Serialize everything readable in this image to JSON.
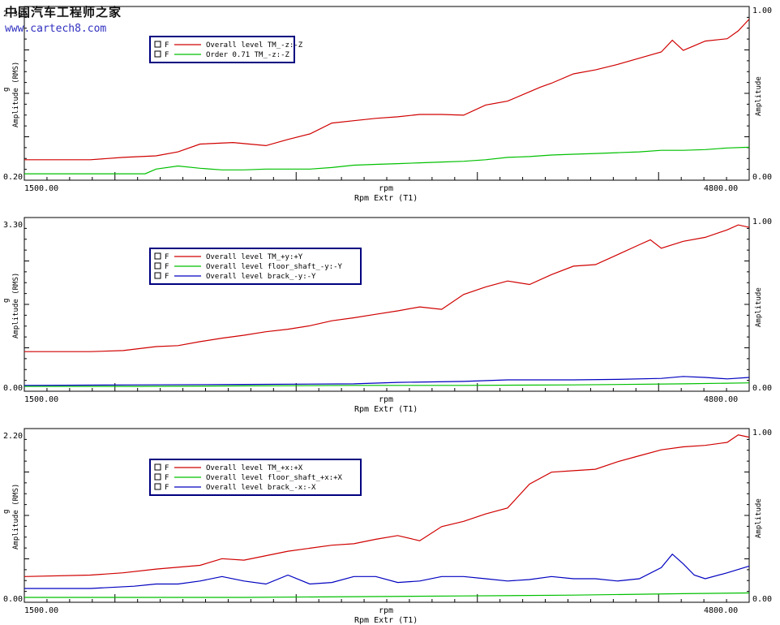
{
  "watermark": {
    "cn": "中国汽车工程师之家",
    "url": "www.cartech8.com"
  },
  "colors": {
    "red": "#d00000",
    "green": "#00c000",
    "blue": "#0000c0",
    "frame": "#000000",
    "legend_border": "#000080"
  },
  "chart_data": [
    {
      "type": "line",
      "xlabel": "rpm",
      "xsublabel": "Rpm Extr (T1)",
      "ylabel": "Amplitude (RMS)",
      "yunit": "g",
      "y2label": "Amplitude",
      "xlim": [
        1500,
        4800
      ],
      "x_ticks": [
        "1500.00",
        "4800.00"
      ],
      "y_ticks": [
        "2.30",
        "0.20"
      ],
      "y2_ticks": [
        "1.00",
        "0.00"
      ],
      "ylim": [
        0.2,
        2.3
      ],
      "legend_checkbox_label": "F",
      "series": [
        {
          "name": "Overall level TM_-z:-Z",
          "color": "red",
          "x": [
            1500,
            1800,
            1950,
            2100,
            2200,
            2300,
            2450,
            2600,
            2700,
            2800,
            2900,
            3000,
            3100,
            3200,
            3300,
            3400,
            3500,
            3600,
            3700,
            3800,
            3850,
            3900,
            4000,
            4100,
            4200,
            4300,
            4400,
            4450,
            4500,
            4550,
            4600,
            4700,
            4750,
            4800
          ],
          "y": [
            0.4,
            0.4,
            0.43,
            0.45,
            0.5,
            0.6,
            0.62,
            0.58,
            0.66,
            0.73,
            0.87,
            0.9,
            0.93,
            0.95,
            0.98,
            0.98,
            0.97,
            1.1,
            1.15,
            1.27,
            1.33,
            1.38,
            1.5,
            1.55,
            1.62,
            1.7,
            1.78,
            1.93,
            1.8,
            1.86,
            1.92,
            1.95,
            2.05,
            2.2
          ]
        },
        {
          "name": "Order 0.71 TM_-z:-Z",
          "color": "green",
          "x": [
            1500,
            1800,
            1950,
            2050,
            2100,
            2200,
            2300,
            2400,
            2500,
            2600,
            2700,
            2800,
            2900,
            3000,
            3100,
            3200,
            3300,
            3400,
            3500,
            3600,
            3700,
            3800,
            3900,
            4000,
            4100,
            4200,
            4300,
            4400,
            4500,
            4600,
            4700,
            4800
          ],
          "y": [
            0.22,
            0.22,
            0.22,
            0.22,
            0.28,
            0.32,
            0.29,
            0.27,
            0.27,
            0.28,
            0.28,
            0.28,
            0.3,
            0.33,
            0.34,
            0.35,
            0.36,
            0.37,
            0.38,
            0.4,
            0.43,
            0.44,
            0.46,
            0.47,
            0.48,
            0.49,
            0.5,
            0.52,
            0.52,
            0.53,
            0.55,
            0.56
          ]
        }
      ]
    },
    {
      "type": "line",
      "xlabel": "rpm",
      "xsublabel": "Rpm Extr (T1)",
      "ylabel": "Amplitude (RMS)",
      "yunit": "g",
      "y2label": "Amplitude",
      "xlim": [
        1500,
        4800
      ],
      "x_ticks": [
        "1500.00",
        "4800.00"
      ],
      "y_ticks": [
        "3.30",
        "0.00"
      ],
      "y2_ticks": [
        "1.00",
        "0.00"
      ],
      "ylim": [
        0,
        3.3
      ],
      "legend_checkbox_label": "F",
      "series": [
        {
          "name": "Overall level TM_+y:+Y",
          "color": "red",
          "x": [
            1500,
            1800,
            1950,
            2100,
            2200,
            2300,
            2400,
            2500,
            2600,
            2700,
            2800,
            2900,
            3000,
            3100,
            3200,
            3300,
            3400,
            3500,
            3600,
            3700,
            3800,
            3900,
            4000,
            4100,
            4200,
            4300,
            4350,
            4400,
            4500,
            4600,
            4700,
            4750,
            4800
          ],
          "y": [
            0.7,
            0.7,
            0.72,
            0.8,
            0.82,
            0.9,
            0.97,
            1.03,
            1.1,
            1.15,
            1.22,
            1.32,
            1.38,
            1.45,
            1.52,
            1.6,
            1.55,
            1.85,
            2.0,
            2.12,
            2.05,
            2.25,
            2.42,
            2.45,
            2.65,
            2.85,
            2.95,
            2.78,
            2.92,
            3.0,
            3.15,
            3.25,
            3.2
          ]
        },
        {
          "name": "Overall level floor_shaft_-y:-Y",
          "color": "green",
          "x": [
            1500,
            2000,
            2500,
            3000,
            3500,
            4000,
            4500,
            4800
          ],
          "y": [
            0.0,
            0.0,
            0.01,
            0.02,
            0.02,
            0.03,
            0.05,
            0.07
          ]
        },
        {
          "name": "Overall level brack_-y:-Y",
          "color": "blue",
          "x": [
            1500,
            2000,
            2500,
            3000,
            3200,
            3500,
            3700,
            4000,
            4200,
            4400,
            4500,
            4600,
            4700,
            4800
          ],
          "y": [
            0.02,
            0.03,
            0.04,
            0.05,
            0.08,
            0.1,
            0.13,
            0.13,
            0.14,
            0.16,
            0.2,
            0.18,
            0.15,
            0.18
          ]
        }
      ]
    },
    {
      "type": "line",
      "xlabel": "rpm",
      "xsublabel": "Rpm Extr (T1)",
      "ylabel": "Amplitude (RMS)",
      "yunit": "g",
      "y2label": "Amplitude",
      "xlim": [
        1500,
        4800
      ],
      "x_ticks": [
        "1500.00",
        "4800.00"
      ],
      "y_ticks": [
        "2.20",
        "0.00"
      ],
      "y2_ticks": [
        "1.00",
        "0.00"
      ],
      "ylim": [
        0,
        2.2
      ],
      "legend_checkbox_label": "F",
      "series": [
        {
          "name": "Overall level TM_+x:+X",
          "color": "red",
          "x": [
            1500,
            1800,
            1950,
            2100,
            2300,
            2400,
            2500,
            2600,
            2700,
            2800,
            2900,
            3000,
            3100,
            3200,
            3300,
            3400,
            3500,
            3600,
            3700,
            3800,
            3900,
            4000,
            4100,
            4200,
            4300,
            4400,
            4500,
            4600,
            4700,
            4750,
            4800
          ],
          "y": [
            0.28,
            0.3,
            0.33,
            0.38,
            0.43,
            0.52,
            0.5,
            0.56,
            0.62,
            0.66,
            0.7,
            0.72,
            0.78,
            0.83,
            0.76,
            0.95,
            1.02,
            1.12,
            1.2,
            1.52,
            1.68,
            1.7,
            1.72,
            1.82,
            1.9,
            1.98,
            2.02,
            2.04,
            2.08,
            2.18,
            2.15
          ]
        },
        {
          "name": "Overall level floor_shaft_+x:+X",
          "color": "green",
          "x": [
            1500,
            2000,
            2500,
            3000,
            3500,
            4000,
            4500,
            4800
          ],
          "y": [
            0.0,
            0.0,
            0.0,
            0.01,
            0.02,
            0.03,
            0.05,
            0.06
          ]
        },
        {
          "name": "Overall level brack_-x:-X",
          "color": "blue",
          "x": [
            1500,
            1800,
            2000,
            2100,
            2200,
            2300,
            2400,
            2500,
            2600,
            2700,
            2800,
            2900,
            3000,
            3100,
            3200,
            3300,
            3400,
            3500,
            3600,
            3700,
            3800,
            3900,
            4000,
            4100,
            4200,
            4300,
            4400,
            4450,
            4500,
            4550,
            4600,
            4700,
            4800
          ],
          "y": [
            0.12,
            0.12,
            0.15,
            0.18,
            0.18,
            0.22,
            0.28,
            0.22,
            0.18,
            0.3,
            0.18,
            0.2,
            0.28,
            0.28,
            0.2,
            0.22,
            0.28,
            0.28,
            0.25,
            0.22,
            0.24,
            0.28,
            0.25,
            0.25,
            0.22,
            0.25,
            0.4,
            0.58,
            0.45,
            0.3,
            0.25,
            0.33,
            0.42
          ]
        }
      ]
    }
  ]
}
